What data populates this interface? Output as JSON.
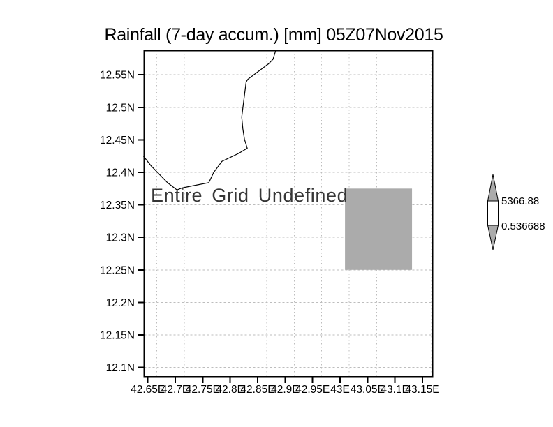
{
  "window": {
    "background": "#ffffff"
  },
  "title": "Rainfall (7-day accum.) [mm] 05Z07Nov2015",
  "chart_data": {
    "type": "map",
    "title": "Rainfall (7-day accum.) [mm] 05Z07Nov2015",
    "annotation": "Entire Grid Undefined",
    "x_axis": {
      "tick_labels": [
        "42.65E",
        "42.7E",
        "42.75E",
        "42.8E",
        "42.85E",
        "42.9E",
        "42.95E",
        "43E",
        "43.05E",
        "43.1E",
        "43.15E"
      ],
      "tick_values": [
        42.65,
        42.7,
        42.75,
        42.8,
        42.85,
        42.9,
        42.95,
        43.0,
        43.05,
        43.1,
        43.15
      ],
      "range": [
        42.6434,
        43.1678
      ]
    },
    "y_axis": {
      "tick_labels": [
        "12.55N",
        "12.5N",
        "12.45N",
        "12.4N",
        "12.35N",
        "12.3N",
        "12.25N",
        "12.2N",
        "12.15N",
        "12.1N"
      ],
      "tick_values": [
        12.55,
        12.5,
        12.45,
        12.4,
        12.35,
        12.3,
        12.25,
        12.2,
        12.15,
        12.1
      ],
      "range": [
        12.0856,
        12.5878
      ]
    },
    "grid": {
      "visible": true,
      "style": "dotted",
      "color": "#bdbdbd"
    },
    "undefined_region": {
      "lon_min": 43.009,
      "lon_max": 43.131,
      "lat_min": 12.25,
      "lat_max": 12.375,
      "fill": "#ababab"
    },
    "coastline": [
      [
        42.883,
        12.588
      ],
      [
        42.878,
        12.574
      ],
      [
        42.87,
        12.567
      ],
      [
        42.832,
        12.543
      ],
      [
        42.829,
        12.539
      ],
      [
        42.823,
        12.499
      ],
      [
        42.821,
        12.485
      ],
      [
        42.823,
        12.467
      ],
      [
        42.826,
        12.451
      ],
      [
        42.831,
        12.437
      ],
      [
        42.815,
        12.429
      ],
      [
        42.785,
        12.417
      ],
      [
        42.77,
        12.4
      ],
      [
        42.761,
        12.384
      ],
      [
        42.724,
        12.378
      ],
      [
        42.712,
        12.376
      ],
      [
        42.703,
        12.373
      ],
      [
        42.686,
        12.384
      ],
      [
        42.656,
        12.41
      ],
      [
        42.642,
        12.425
      ]
    ],
    "colorbar": {
      "max_label": "5366.88",
      "min_label": "0.536688",
      "fill": "#ababab",
      "outline": "#000000"
    }
  },
  "colors": {
    "frame": "#000000",
    "coastline": "#000000",
    "text": "#000000",
    "annotation": "#363636"
  }
}
